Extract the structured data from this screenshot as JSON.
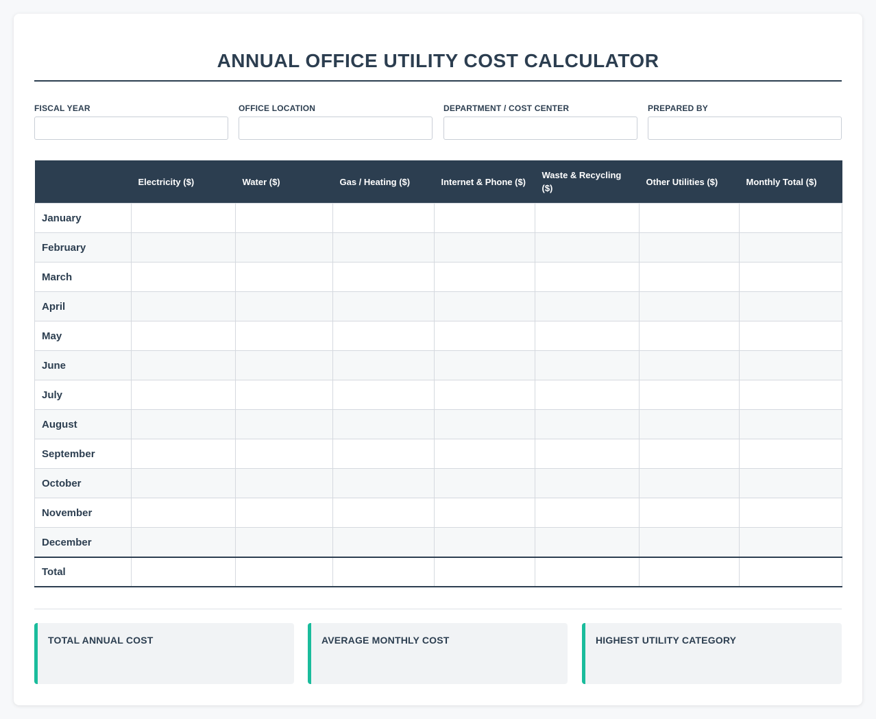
{
  "title": "ANNUAL OFFICE UTILITY COST CALCULATOR",
  "meta_fields": [
    {
      "label": "FISCAL YEAR",
      "value": ""
    },
    {
      "label": "OFFICE LOCATION",
      "value": ""
    },
    {
      "label": "DEPARTMENT / COST CENTER",
      "value": ""
    },
    {
      "label": "PREPARED BY",
      "value": ""
    }
  ],
  "table": {
    "headers": [
      "",
      "Electricity ($)",
      "Water ($)",
      "Gas / Heating ($)",
      "Internet & Phone ($)",
      "Waste & Recycling ($)",
      "Other Utilities ($)",
      "Monthly Total ($)"
    ],
    "months": [
      "January",
      "February",
      "March",
      "April",
      "May",
      "June",
      "July",
      "August",
      "September",
      "October",
      "November",
      "December"
    ],
    "total_label": "Total"
  },
  "summary": [
    {
      "label": "TOTAL ANNUAL COST",
      "value": ""
    },
    {
      "label": "AVERAGE MONTHLY COST",
      "value": ""
    },
    {
      "label": "HIGHEST UTILITY CATEGORY",
      "value": ""
    }
  ],
  "colors": {
    "header_bg": "#2c3e50",
    "accent": "#1abc9c",
    "summary_bg": "#f1f3f5",
    "total_row_bg": "#e8ebef"
  }
}
